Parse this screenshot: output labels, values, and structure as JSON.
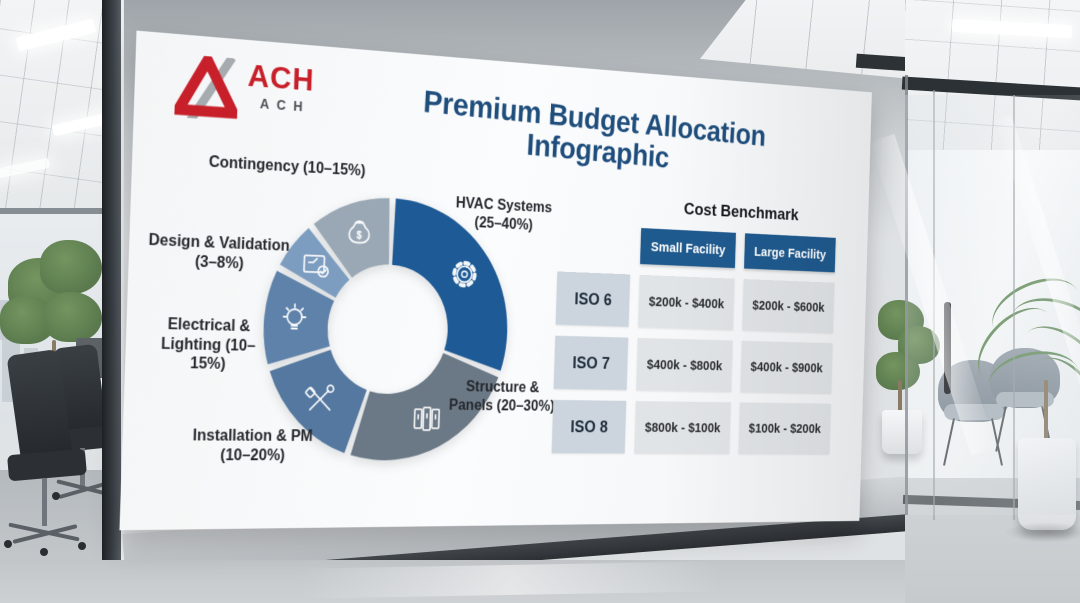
{
  "colors": {
    "brand_red": "#c8202a",
    "brand_gray": "#9aa0a5",
    "title_blue": "#1f4e7d",
    "table_header_blue": "#1f5a8f",
    "iso_cell_bg": "#ccd5dd",
    "value_cell_bg": "#e1e4e6",
    "poster_bg": "#f8fafb"
  },
  "poster": {
    "logo": {
      "primary": "ACH",
      "secondary": "ACH"
    },
    "title": "Premium Budget Allocation Infographic",
    "benchmark": {
      "title": "Cost Benchmark",
      "columns": [
        "Small Facility",
        "Large Facility"
      ],
      "rows": [
        {
          "label": "ISO 6",
          "small": "$200k - $400k",
          "large": "$200k - $600k"
        },
        {
          "label": "ISO 7",
          "small": "$400k - $800k",
          "large": "$400k - $900k"
        },
        {
          "label": "ISO 8",
          "small": "$800k - $100k",
          "large": "$100k - $200k"
        }
      ]
    }
  },
  "chart_data": {
    "type": "donut",
    "title": "Premium Budget Allocation",
    "start_angle_deg": 0,
    "gap_deg": 3,
    "legend_position": "around",
    "segments": [
      {
        "label": "HVAC Systems",
        "range": "(25–40%)",
        "value": 31,
        "color": "#1d5a96",
        "icon": "gear-icon"
      },
      {
        "label": "Structure & Panels",
        "range": "(20–30%)",
        "value": 25,
        "color": "#6b7987",
        "icon": "panels-icon"
      },
      {
        "label": "Installation & PM",
        "range": "(10–20%)",
        "value": 15,
        "color": "#54789f",
        "icon": "tools-icon"
      },
      {
        "label": "Electrical & Lighting",
        "range": "(10–15%)",
        "value": 12,
        "color": "#5e82aa",
        "icon": "lightbulb-icon"
      },
      {
        "label": "Design & Validation",
        "range": "(3–8%)",
        "value": 6,
        "color": "#7c9dc0",
        "icon": "blueprint-icon"
      },
      {
        "label": "Contingency",
        "range": "(10–15%)",
        "value": 11,
        "color": "#9aa8b5",
        "icon": "moneybag-icon"
      }
    ]
  }
}
